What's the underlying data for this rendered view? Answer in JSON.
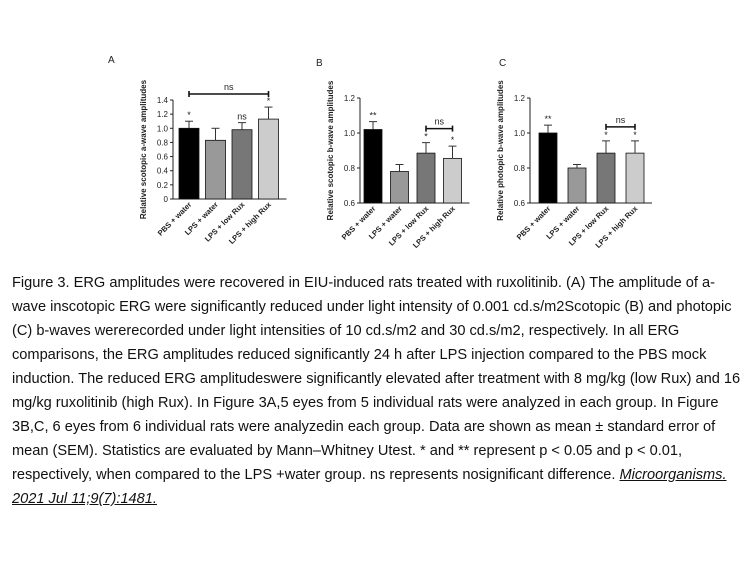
{
  "chart_data": [
    {
      "type": "bar",
      "panel_label": "A",
      "ylabel": "Relative scotopic a-wave amplitudes",
      "categories": [
        "PBS + water",
        "LPS + water",
        "LPS + low Rux",
        "LPS + high Rux"
      ],
      "values": [
        1.0,
        0.83,
        0.98,
        1.13
      ],
      "errors": [
        0.1,
        0.17,
        0.1,
        0.17
      ],
      "bar_colors": [
        "#000000",
        "#999999",
        "#777777",
        "#cccccc"
      ],
      "ylim": [
        0,
        1.4
      ],
      "yticks": [
        0,
        0.2,
        0.4,
        0.6,
        0.8,
        1.0,
        1.2,
        1.4
      ],
      "yticklabels": [
        "0",
        "0.2",
        "0.4",
        "0.6",
        "0.8",
        "1.0",
        "1.2",
        "1.4"
      ],
      "significance": [
        "*",
        "",
        "ns",
        "*"
      ],
      "bracket": {
        "from": 0,
        "to": 3,
        "label": "ns"
      }
    },
    {
      "type": "bar",
      "panel_label": "B",
      "ylabel": "Relative scotopic b-wave amplitudes",
      "categories": [
        "PBS + water",
        "LPS + water",
        "LPS + low Rux",
        "LPS + high Rux"
      ],
      "values": [
        1.02,
        0.78,
        0.885,
        0.855
      ],
      "errors": [
        0.045,
        0.04,
        0.06,
        0.07
      ],
      "bar_colors": [
        "#000000",
        "#999999",
        "#777777",
        "#cccccc"
      ],
      "ylim": [
        0.6,
        1.2
      ],
      "yticks": [
        0.6,
        0.8,
        1.0,
        1.2
      ],
      "yticklabels": [
        "0.6",
        "0.8",
        "1.0",
        "1.2"
      ],
      "significance": [
        "**",
        "",
        "*",
        "*"
      ],
      "bracket": {
        "from": 2,
        "to": 3,
        "label": "ns"
      }
    },
    {
      "type": "bar",
      "panel_label": "C",
      "ylabel": "Relative photopic b-wave amplitudes",
      "categories": [
        "PBS + water",
        "LPS + water",
        "LPS + low Rux",
        "LPS + high Rux"
      ],
      "values": [
        1.0,
        0.8,
        0.885,
        0.885
      ],
      "errors": [
        0.045,
        0.02,
        0.07,
        0.07
      ],
      "bar_colors": [
        "#000000",
        "#999999",
        "#777777",
        "#cccccc"
      ],
      "ylim": [
        0.6,
        1.2
      ],
      "yticks": [
        0.6,
        0.8,
        1.0,
        1.2
      ],
      "yticklabels": [
        "0.6",
        "0.8",
        "1.0",
        "1.2"
      ],
      "significance": [
        "**",
        "",
        "*",
        "*"
      ],
      "bracket": {
        "from": 2,
        "to": 3,
        "label": "ns"
      }
    }
  ],
  "caption": {
    "text": "Figure 3. ERG amplitudes were recovered in EIU-induced rats treated with ruxolitinib. (A) The amplitude of a-wave inscotopic ERG were significantly reduced under light intensity of 0.001 cd.s/m2Scotopic (B) and photopic (C) b-waves wererecorded under light intensities of 10 cd.s/m2 and 30 cd.s/m2, respectively. In all ERG comparisons, the ERG amplitudes reduced significantly 24 h after LPS injection compared to the PBS mock induction. The reduced ERG amplitudeswere significantly elevated after treatment with 8 mg/kg (low Rux) and 16 mg/kg ruxolitinib (high Rux). In Figure 3A,5 eyes from 5 individual rats were analyzed in each group. In Figure 3B,C, 6 eyes from 6 individual rats were analyzedin each group. Data are shown as mean ± standard error of mean (SEM). Statistics are evaluated by Mann–Whitney Utest. * and ** represent p < 0.05 and p < 0.01, respectively, when compared to the LPS +water group. ns represents nosignificant difference.",
    "citation": "Microorganisms. 2021 Jul 11;9(7):1481."
  }
}
